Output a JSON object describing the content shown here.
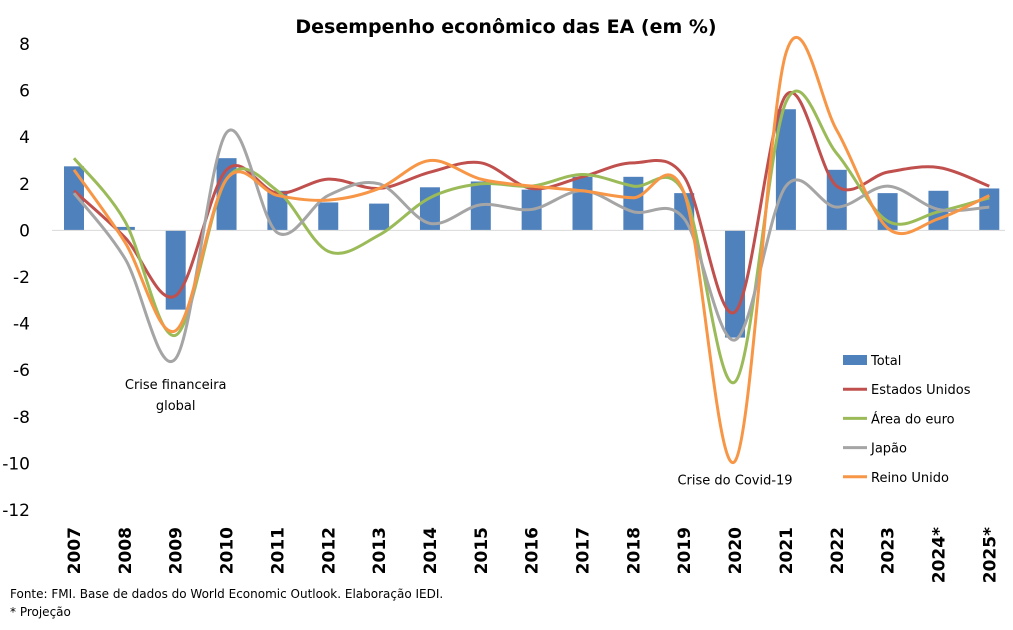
{
  "chart_data": {
    "type": "bar",
    "title": "Desempenho econômico das EA (em %)",
    "categories": [
      "2007",
      "2008",
      "2009",
      "2010",
      "2011",
      "2012",
      "2013",
      "2014",
      "2015",
      "2016",
      "2017",
      "2018",
      "2019",
      "2020",
      "2021",
      "2022",
      "2023",
      "2024*",
      "2025*"
    ],
    "ylim": [
      -12,
      8
    ],
    "yticks": [
      8,
      6,
      4,
      2,
      0,
      -2,
      -4,
      -6,
      -8,
      -10,
      -12
    ],
    "series": [
      {
        "name": "Total",
        "type": "bar",
        "color": "#4f81bd",
        "values": [
          2.75,
          0.15,
          -3.4,
          3.1,
          1.7,
          1.2,
          1.15,
          1.85,
          2.1,
          1.75,
          2.3,
          2.3,
          1.6,
          -4.6,
          5.2,
          2.6,
          1.6,
          1.7,
          1.8
        ]
      },
      {
        "name": "Estados Unidos",
        "type": "line",
        "color": "#c0504d",
        "values": [
          1.7,
          -0.3,
          -2.8,
          2.6,
          1.6,
          2.2,
          1.8,
          2.5,
          2.9,
          1.8,
          2.3,
          2.9,
          2.3,
          -3.5,
          5.8,
          1.9,
          2.5,
          2.7,
          1.9
        ]
      },
      {
        "name": "Área do euro",
        "type": "line",
        "color": "#9bbb59",
        "values": [
          3.1,
          0.4,
          -4.5,
          2.2,
          1.7,
          -0.9,
          -0.2,
          1.4,
          2.0,
          1.9,
          2.4,
          1.9,
          1.6,
          -6.5,
          5.5,
          3.3,
          0.4,
          0.8,
          1.4
        ]
      },
      {
        "name": "Japão",
        "type": "line",
        "color": "#a5a5a5",
        "values": [
          1.6,
          -1.2,
          -5.5,
          4.2,
          -0.1,
          1.5,
          2.0,
          0.3,
          1.1,
          0.9,
          1.7,
          0.8,
          0.5,
          -4.7,
          1.9,
          1.0,
          1.9,
          0.9,
          1.0
        ]
      },
      {
        "name": "Reino Unido",
        "type": "line",
        "color": "#f79646",
        "values": [
          2.6,
          -0.5,
          -4.3,
          2.2,
          1.5,
          1.3,
          1.8,
          3.0,
          2.2,
          1.9,
          1.7,
          1.4,
          1.6,
          -9.9,
          7.6,
          4.3,
          0.1,
          0.5,
          1.5
        ]
      }
    ],
    "annotations": [
      {
        "text": "Crise financeira",
        "category": "2009",
        "y": -6.8
      },
      {
        "text": "global",
        "category": "2009",
        "y": -7.7
      },
      {
        "text": "Crise do Covid-19",
        "category": "2020",
        "y": -10.9
      }
    ],
    "legend": {
      "placement": "right"
    }
  },
  "footer": {
    "source": "Fonte: FMI. Base de dados do World Economic Outlook. Elaboração IEDI.",
    "note": "* Projeção"
  }
}
